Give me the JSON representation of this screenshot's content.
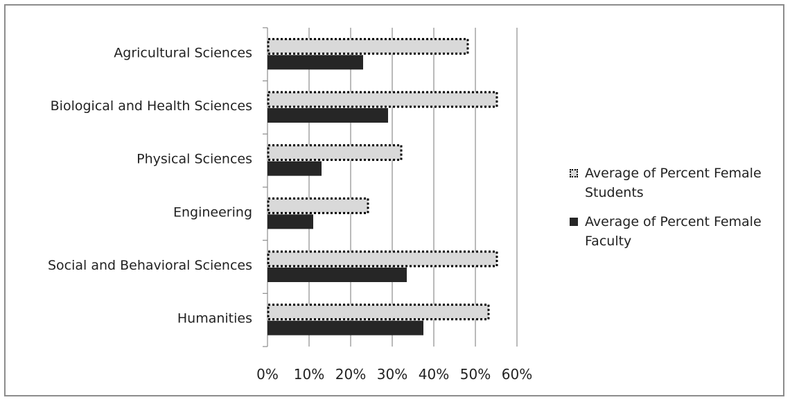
{
  "chart_data": {
    "type": "bar",
    "orientation": "horizontal",
    "categories": [
      "Agricultural Sciences",
      "Biological and Health Sciences",
      "Physical Sciences",
      "Engineering",
      "Social and Behavioral Sciences",
      "Humanities"
    ],
    "series": [
      {
        "name": "Average of Percent Female Students",
        "values": [
          48,
          55,
          32,
          24,
          55,
          53
        ],
        "color": "#d9d9d9",
        "border": "dotted"
      },
      {
        "name": "Average of Percent Female Faculty",
        "values": [
          23,
          29,
          13,
          11,
          33.5,
          37.5
        ],
        "color": "#262626"
      }
    ],
    "xlim": [
      0,
      60
    ],
    "x_ticks": [
      "0%",
      "10%",
      "20%",
      "30%",
      "40%",
      "50%",
      "60%"
    ],
    "grid": "vertical",
    "legend_position": "right",
    "title": "",
    "xlabel": "",
    "ylabel": ""
  },
  "legend": {
    "students_label": "Average of Percent Female Students",
    "faculty_label": "Average of Percent Female Faculty"
  }
}
